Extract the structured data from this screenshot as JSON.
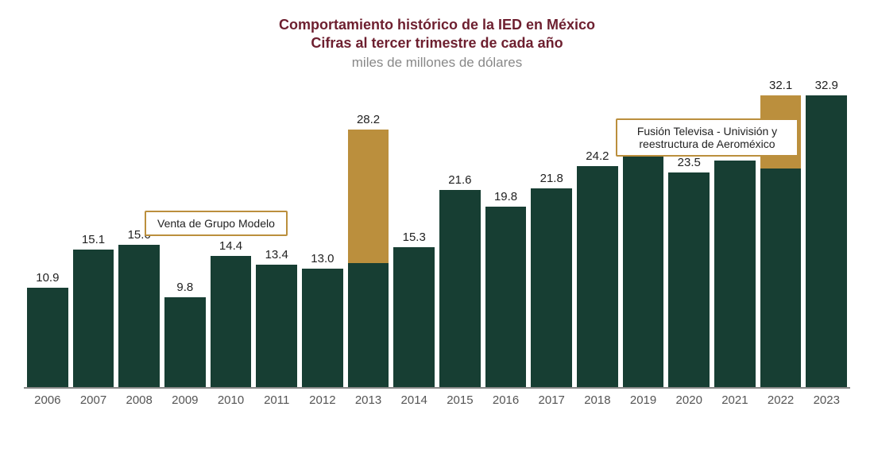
{
  "chart": {
    "title_line1": "Comportamiento histórico de la IED en México",
    "title_line2": "Cifras al tercer trimestre de cada año",
    "subtitle": "miles de millones de dólares",
    "title_color": "#6d1f2f",
    "subtitle_color": "#888888",
    "title_fontsize": 18,
    "subtitle_fontsize": 17,
    "background_color": "#ffffff",
    "axis_color": "#888888",
    "ylim": [
      0,
      34
    ],
    "y_scale_unit": "miles de millones USD",
    "bars": [
      {
        "year": "2006",
        "base": 10.9,
        "extra": 0,
        "label": "10.9"
      },
      {
        "year": "2007",
        "base": 15.1,
        "extra": 0,
        "label": "15.1"
      },
      {
        "year": "2008",
        "base": 15.6,
        "extra": 0,
        "label": "15.6"
      },
      {
        "year": "2009",
        "base": 9.8,
        "extra": 0,
        "label": "9.8"
      },
      {
        "year": "2010",
        "base": 14.4,
        "extra": 0,
        "label": "14.4"
      },
      {
        "year": "2011",
        "base": 13.4,
        "extra": 0,
        "label": "13.4"
      },
      {
        "year": "2012",
        "base": 13.0,
        "extra": 0,
        "label": "13.0"
      },
      {
        "year": "2013",
        "base": 13.6,
        "extra": 14.6,
        "label": "28.2"
      },
      {
        "year": "2014",
        "base": 15.3,
        "extra": 0,
        "label": "15.3"
      },
      {
        "year": "2015",
        "base": 21.6,
        "extra": 0,
        "label": "21.6"
      },
      {
        "year": "2016",
        "base": 19.8,
        "extra": 0,
        "label": "19.8"
      },
      {
        "year": "2017",
        "base": 21.8,
        "extra": 0,
        "label": "21.8"
      },
      {
        "year": "2018",
        "base": 24.2,
        "extra": 0,
        "label": "24.2"
      },
      {
        "year": "2019",
        "base": 26.1,
        "extra": 0,
        "label": "26.1"
      },
      {
        "year": "2020",
        "base": 23.5,
        "extra": 0,
        "label": "23.5"
      },
      {
        "year": "2021",
        "base": 24.8,
        "extra": 0,
        "label": "24.8"
      },
      {
        "year": "2022",
        "base": 24.0,
        "extra": 8.1,
        "label": "32.1"
      },
      {
        "year": "2023",
        "base": 32.9,
        "extra": 0,
        "label": "32.9"
      }
    ],
    "bar_color_base": "#173e33",
    "bar_color_extra": "#bb8f3d",
    "value_label_color": "#222222",
    "value_label_fontsize": 15,
    "x_label_color": "#555555",
    "x_label_fontsize": 15,
    "callouts": [
      {
        "text": "Venta de Grupo Modelo",
        "border_color": "#bb8f3d"
      },
      {
        "text": "Fusión Televisa - Univisión y reestructura de Aeroméxico",
        "border_color": "#bb8f3d"
      }
    ]
  }
}
